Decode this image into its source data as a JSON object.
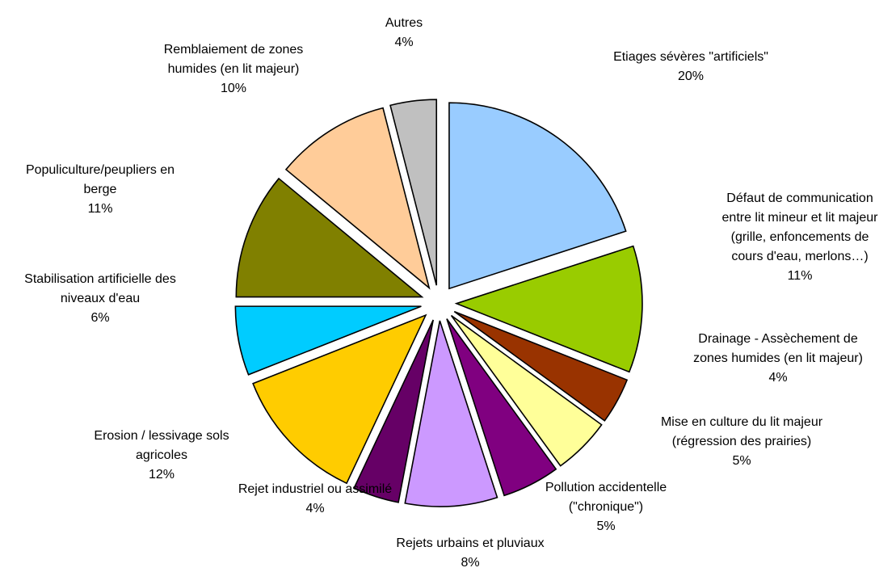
{
  "chart_data": {
    "type": "pie",
    "title": "",
    "legend": "none",
    "slices": [
      {
        "label": "Etiages sévères \"artificiels\"",
        "value": 20,
        "value_label": "20%",
        "color": "#99CCFF",
        "exploded": true
      },
      {
        "label": "Défaut de communication entre lit mineur et lit majeur (grille, enfoncements de cours d'eau, merlons…)",
        "value": 11,
        "value_label": "11%",
        "color": "#99CC00",
        "exploded": true
      },
      {
        "label": "Drainage - Assèchement de zones humides (en lit majeur)",
        "value": 4,
        "value_label": "4%",
        "color": "#993300",
        "exploded": true
      },
      {
        "label": "Mise en culture du lit majeur (régression des prairies)",
        "value": 5,
        "value_label": "5%",
        "color": "#FFFF99",
        "exploded": true
      },
      {
        "label": "Pollution accidentelle (\"chronique\")",
        "value": 5,
        "value_label": "5%",
        "color": "#800080",
        "exploded": true
      },
      {
        "label": "Rejets urbains et pluviaux",
        "value": 8,
        "value_label": "8%",
        "color": "#CC99FF",
        "exploded": true
      },
      {
        "label": "Rejet industriel ou assimilé",
        "value": 4,
        "value_label": "4%",
        "color": "#660066",
        "exploded": true
      },
      {
        "label": "Erosion / lessivage sols agricoles",
        "value": 12,
        "value_label": "12%",
        "color": "#FFCC00",
        "exploded": true
      },
      {
        "label": "Stabilisation artificielle des niveaux d'eau",
        "value": 6,
        "value_label": "6%",
        "color": "#00CCFF",
        "exploded": true
      },
      {
        "label": "Populiculture/peupliers en berge",
        "value": 11,
        "value_label": "11%",
        "color": "#808000",
        "exploded": true
      },
      {
        "label": "Remblaiement de zones humides (en lit majeur)",
        "value": 10,
        "value_label": "10%",
        "color": "#FFCC99",
        "exploded": true
      },
      {
        "label": "Autres",
        "value": 4,
        "value_label": "4%",
        "color": "#C0C0C0",
        "exploded": true
      }
    ]
  }
}
